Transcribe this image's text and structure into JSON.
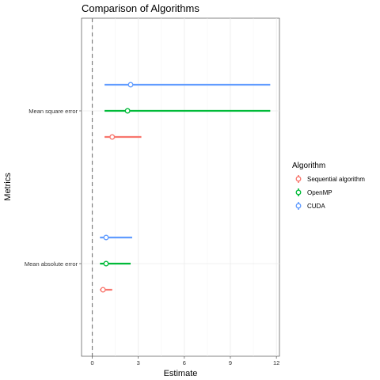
{
  "chart_data": {
    "type": "pointrange",
    "title": "Comparison of Algorithms",
    "xlabel": "Estimate",
    "ylabel": "Metrics",
    "xlim": [
      -0.7,
      12.2
    ],
    "x_ticks": [
      0,
      3,
      6,
      9,
      12
    ],
    "x_tick_labels": [
      "0",
      "3",
      "6",
      "9",
      "12"
    ],
    "reference_line": {
      "x": 0,
      "style": "dashed"
    },
    "categories": [
      "Mean absolute error",
      "Mean square error"
    ],
    "legend": {
      "title": "Algorithm",
      "placement": "right",
      "entries": [
        "Sequential algorithm",
        "OpenMP",
        "CUDA"
      ]
    },
    "series": [
      {
        "name": "Sequential algorithm",
        "color": "#F8766D",
        "points": [
          {
            "category": "Mean absolute error",
            "estimate": 0.7,
            "low": 0.5,
            "high": 1.3
          },
          {
            "category": "Mean square error",
            "estimate": 1.3,
            "low": 0.8,
            "high": 3.2
          }
        ]
      },
      {
        "name": "OpenMP",
        "color": "#00BA38",
        "points": [
          {
            "category": "Mean absolute error",
            "estimate": 0.9,
            "low": 0.5,
            "high": 2.5
          },
          {
            "category": "Mean square error",
            "estimate": 2.3,
            "low": 0.8,
            "high": 11.6
          }
        ]
      },
      {
        "name": "CUDA",
        "color": "#619CFF",
        "points": [
          {
            "category": "Mean absolute error",
            "estimate": 0.9,
            "low": 0.5,
            "high": 2.6
          },
          {
            "category": "Mean square error",
            "estimate": 2.5,
            "low": 0.8,
            "high": 11.6
          }
        ]
      }
    ]
  }
}
